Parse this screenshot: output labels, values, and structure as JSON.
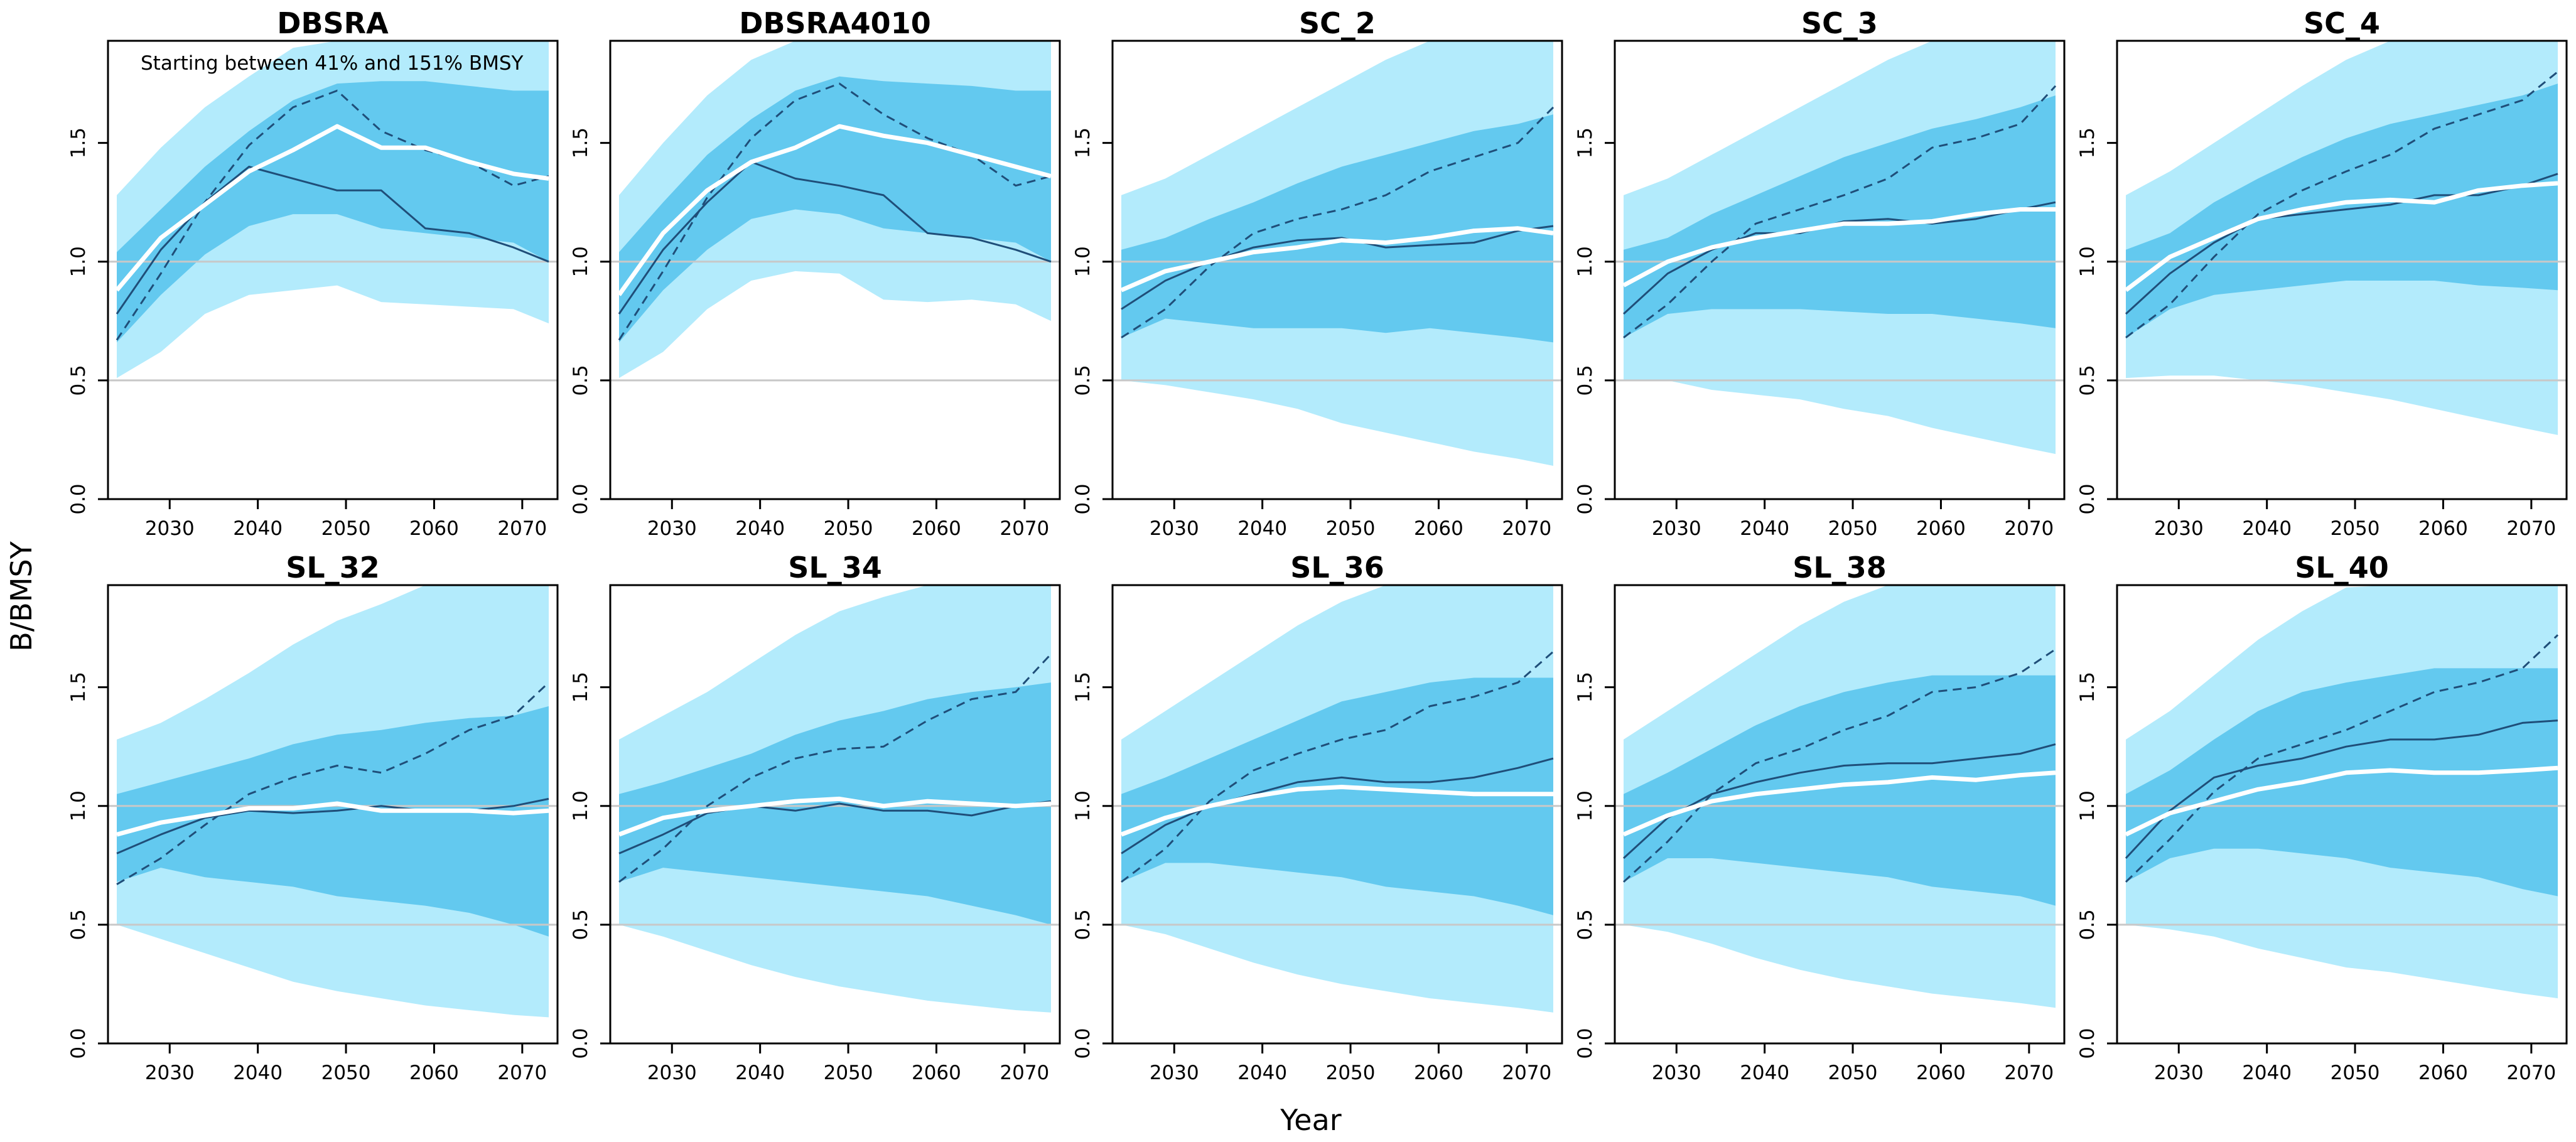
{
  "figure": {
    "ylabel": "B/BMSY",
    "xlabel": "Year"
  },
  "colors": {
    "outer_band": "#b3ebfc",
    "inner_band": "#63c9ef",
    "median_line": "#ffffff",
    "example_line": "#1f4e79",
    "dashed_line": "#1f4e79",
    "ref_line": "#c8c8c8",
    "frame": "#000000"
  },
  "chart_data": [
    {
      "type": "area",
      "title": "DBSRA",
      "annotation": "Starting between 41% and 151% BMSY",
      "xlim": [
        2023,
        2074
      ],
      "ylim": [
        0,
        1.93
      ],
      "xticks": [
        2030,
        2040,
        2050,
        2060,
        2070
      ],
      "yticks": [
        0.0,
        0.5,
        1.0,
        1.5
      ],
      "reference_lines": [
        0.5,
        1.0
      ],
      "years": [
        2024,
        2029,
        2034,
        2039,
        2044,
        2049,
        2054,
        2059,
        2064,
        2069,
        2073
      ],
      "outer_lo": [
        0.51,
        0.62,
        0.78,
        0.86,
        0.88,
        0.9,
        0.83,
        0.82,
        0.81,
        0.8,
        0.74
      ],
      "outer_hi": [
        1.28,
        1.48,
        1.65,
        1.78,
        1.9,
        1.93,
        1.93,
        1.93,
        1.93,
        1.93,
        1.93
      ],
      "inner_lo": [
        0.66,
        0.86,
        1.03,
        1.15,
        1.2,
        1.2,
        1.14,
        1.12,
        1.1,
        1.08,
        1.0
      ],
      "inner_hi": [
        1.04,
        1.22,
        1.4,
        1.55,
        1.68,
        1.75,
        1.76,
        1.76,
        1.74,
        1.72,
        1.72
      ],
      "median": [
        0.88,
        1.1,
        1.24,
        1.38,
        1.47,
        1.57,
        1.48,
        1.48,
        1.42,
        1.37,
        1.35
      ],
      "example": [
        0.78,
        1.05,
        1.25,
        1.4,
        1.35,
        1.3,
        1.3,
        1.14,
        1.12,
        1.06,
        1.0
      ],
      "dashed": [
        0.67,
        0.95,
        1.25,
        1.49,
        1.65,
        1.72,
        1.55,
        1.47,
        1.42,
        1.32,
        1.36
      ]
    },
    {
      "type": "area",
      "title": "DBSRA4010",
      "xlim": [
        2023,
        2074
      ],
      "ylim": [
        0,
        1.93
      ],
      "xticks": [
        2030,
        2040,
        2050,
        2060,
        2070
      ],
      "yticks": [
        0.0,
        0.5,
        1.0,
        1.5
      ],
      "reference_lines": [
        0.5,
        1.0
      ],
      "years": [
        2024,
        2029,
        2034,
        2039,
        2044,
        2049,
        2054,
        2059,
        2064,
        2069,
        2073
      ],
      "outer_lo": [
        0.51,
        0.62,
        0.8,
        0.92,
        0.96,
        0.95,
        0.84,
        0.83,
        0.84,
        0.82,
        0.75
      ],
      "outer_hi": [
        1.28,
        1.5,
        1.7,
        1.85,
        1.93,
        1.93,
        1.93,
        1.93,
        1.93,
        1.93,
        1.93
      ],
      "inner_lo": [
        0.66,
        0.88,
        1.05,
        1.18,
        1.22,
        1.2,
        1.14,
        1.12,
        1.1,
        1.08,
        1.0
      ],
      "inner_hi": [
        1.04,
        1.25,
        1.45,
        1.6,
        1.72,
        1.78,
        1.76,
        1.75,
        1.74,
        1.72,
        1.72
      ],
      "median": [
        0.86,
        1.12,
        1.3,
        1.42,
        1.48,
        1.57,
        1.53,
        1.5,
        1.45,
        1.4,
        1.36
      ],
      "example": [
        0.78,
        1.05,
        1.25,
        1.42,
        1.35,
        1.32,
        1.28,
        1.12,
        1.1,
        1.05,
        1.0
      ],
      "dashed": [
        0.67,
        0.96,
        1.27,
        1.52,
        1.68,
        1.75,
        1.62,
        1.52,
        1.45,
        1.32,
        1.36
      ]
    },
    {
      "type": "area",
      "title": "SC_2",
      "xlim": [
        2023,
        2074
      ],
      "ylim": [
        0,
        1.93
      ],
      "xticks": [
        2030,
        2040,
        2050,
        2060,
        2070
      ],
      "yticks": [
        0.0,
        0.5,
        1.0,
        1.5
      ],
      "reference_lines": [
        0.5,
        1.0
      ],
      "years": [
        2024,
        2029,
        2034,
        2039,
        2044,
        2049,
        2054,
        2059,
        2064,
        2069,
        2073
      ],
      "outer_lo": [
        0.5,
        0.48,
        0.45,
        0.42,
        0.38,
        0.32,
        0.28,
        0.24,
        0.2,
        0.17,
        0.14
      ],
      "outer_hi": [
        1.28,
        1.35,
        1.45,
        1.55,
        1.65,
        1.75,
        1.85,
        1.93,
        1.93,
        1.93,
        1.93
      ],
      "inner_lo": [
        0.68,
        0.76,
        0.74,
        0.72,
        0.72,
        0.72,
        0.7,
        0.72,
        0.7,
        0.68,
        0.66
      ],
      "inner_hi": [
        1.05,
        1.1,
        1.18,
        1.25,
        1.33,
        1.4,
        1.45,
        1.5,
        1.55,
        1.58,
        1.62
      ],
      "median": [
        0.88,
        0.96,
        1.0,
        1.04,
        1.06,
        1.09,
        1.08,
        1.1,
        1.13,
        1.14,
        1.12
      ],
      "example": [
        0.8,
        0.92,
        1.0,
        1.06,
        1.09,
        1.1,
        1.06,
        1.07,
        1.08,
        1.13,
        1.15
      ],
      "dashed": [
        0.68,
        0.8,
        0.98,
        1.12,
        1.18,
        1.22,
        1.28,
        1.38,
        1.44,
        1.5,
        1.65
      ]
    },
    {
      "type": "area",
      "title": "SC_3",
      "xlim": [
        2023,
        2074
      ],
      "ylim": [
        0,
        1.93
      ],
      "xticks": [
        2030,
        2040,
        2050,
        2060,
        2070
      ],
      "yticks": [
        0.0,
        0.5,
        1.0,
        1.5
      ],
      "reference_lines": [
        0.5,
        1.0
      ],
      "years": [
        2024,
        2029,
        2034,
        2039,
        2044,
        2049,
        2054,
        2059,
        2064,
        2069,
        2073
      ],
      "outer_lo": [
        0.5,
        0.5,
        0.46,
        0.44,
        0.42,
        0.38,
        0.35,
        0.3,
        0.26,
        0.22,
        0.19
      ],
      "outer_hi": [
        1.28,
        1.35,
        1.45,
        1.55,
        1.65,
        1.75,
        1.85,
        1.93,
        1.93,
        1.93,
        1.93
      ],
      "inner_lo": [
        0.68,
        0.78,
        0.8,
        0.8,
        0.8,
        0.79,
        0.78,
        0.78,
        0.76,
        0.74,
        0.72
      ],
      "inner_hi": [
        1.05,
        1.1,
        1.2,
        1.28,
        1.36,
        1.44,
        1.5,
        1.56,
        1.6,
        1.65,
        1.7
      ],
      "median": [
        0.9,
        1.0,
        1.06,
        1.1,
        1.13,
        1.16,
        1.16,
        1.17,
        1.2,
        1.22,
        1.22
      ],
      "example": [
        0.78,
        0.95,
        1.05,
        1.12,
        1.12,
        1.17,
        1.18,
        1.16,
        1.18,
        1.22,
        1.25
      ],
      "dashed": [
        0.68,
        0.82,
        1.0,
        1.16,
        1.22,
        1.28,
        1.35,
        1.48,
        1.52,
        1.58,
        1.74
      ]
    },
    {
      "type": "area",
      "title": "SC_4",
      "xlim": [
        2023,
        2074
      ],
      "ylim": [
        0,
        1.93
      ],
      "xticks": [
        2030,
        2040,
        2050,
        2060,
        2070
      ],
      "yticks": [
        0.0,
        0.5,
        1.0,
        1.5
      ],
      "reference_lines": [
        0.5,
        1.0
      ],
      "years": [
        2024,
        2029,
        2034,
        2039,
        2044,
        2049,
        2054,
        2059,
        2064,
        2069,
        2073
      ],
      "outer_lo": [
        0.51,
        0.52,
        0.52,
        0.5,
        0.48,
        0.45,
        0.42,
        0.38,
        0.34,
        0.3,
        0.27
      ],
      "outer_hi": [
        1.28,
        1.38,
        1.5,
        1.62,
        1.74,
        1.85,
        1.93,
        1.93,
        1.93,
        1.93,
        1.93
      ],
      "inner_lo": [
        0.68,
        0.8,
        0.86,
        0.88,
        0.9,
        0.92,
        0.92,
        0.92,
        0.9,
        0.89,
        0.88
      ],
      "inner_hi": [
        1.05,
        1.12,
        1.25,
        1.35,
        1.44,
        1.52,
        1.58,
        1.62,
        1.66,
        1.7,
        1.75
      ],
      "median": [
        0.88,
        1.02,
        1.1,
        1.18,
        1.22,
        1.25,
        1.26,
        1.25,
        1.3,
        1.32,
        1.33
      ],
      "example": [
        0.78,
        0.95,
        1.08,
        1.18,
        1.2,
        1.22,
        1.24,
        1.28,
        1.28,
        1.32,
        1.37
      ],
      "dashed": [
        0.68,
        0.82,
        1.02,
        1.2,
        1.3,
        1.38,
        1.45,
        1.56,
        1.62,
        1.68,
        1.8
      ]
    },
    {
      "type": "area",
      "title": "SL_32",
      "xlim": [
        2023,
        2074
      ],
      "ylim": [
        0,
        1.93
      ],
      "xticks": [
        2030,
        2040,
        2050,
        2060,
        2070
      ],
      "yticks": [
        0.0,
        0.5,
        1.0,
        1.5
      ],
      "reference_lines": [
        0.5,
        1.0
      ],
      "years": [
        2024,
        2029,
        2034,
        2039,
        2044,
        2049,
        2054,
        2059,
        2064,
        2069,
        2073
      ],
      "outer_lo": [
        0.5,
        0.44,
        0.38,
        0.32,
        0.26,
        0.22,
        0.19,
        0.16,
        0.14,
        0.12,
        0.11
      ],
      "outer_hi": [
        1.28,
        1.35,
        1.45,
        1.56,
        1.68,
        1.78,
        1.85,
        1.93,
        1.93,
        1.93,
        1.93
      ],
      "inner_lo": [
        0.68,
        0.74,
        0.7,
        0.68,
        0.66,
        0.62,
        0.6,
        0.58,
        0.55,
        0.5,
        0.45
      ],
      "inner_hi": [
        1.05,
        1.1,
        1.15,
        1.2,
        1.26,
        1.3,
        1.32,
        1.35,
        1.37,
        1.38,
        1.42
      ],
      "median": [
        0.88,
        0.93,
        0.96,
        0.99,
        0.99,
        1.01,
        0.98,
        0.98,
        0.98,
        0.97,
        0.98
      ],
      "example": [
        0.8,
        0.88,
        0.95,
        0.98,
        0.97,
        0.98,
        1.0,
        0.98,
        0.98,
        1.0,
        1.03
      ],
      "dashed": [
        0.67,
        0.78,
        0.92,
        1.05,
        1.12,
        1.17,
        1.14,
        1.22,
        1.32,
        1.38,
        1.52
      ]
    },
    {
      "type": "area",
      "title": "SL_34",
      "xlim": [
        2023,
        2074
      ],
      "ylim": [
        0,
        1.93
      ],
      "xticks": [
        2030,
        2040,
        2050,
        2060,
        2070
      ],
      "yticks": [
        0.0,
        0.5,
        1.0,
        1.5
      ],
      "reference_lines": [
        0.5,
        1.0
      ],
      "years": [
        2024,
        2029,
        2034,
        2039,
        2044,
        2049,
        2054,
        2059,
        2064,
        2069,
        2073
      ],
      "outer_lo": [
        0.5,
        0.45,
        0.39,
        0.33,
        0.28,
        0.24,
        0.21,
        0.18,
        0.16,
        0.14,
        0.13
      ],
      "outer_hi": [
        1.28,
        1.38,
        1.48,
        1.6,
        1.72,
        1.82,
        1.88,
        1.93,
        1.93,
        1.93,
        1.93
      ],
      "inner_lo": [
        0.68,
        0.74,
        0.72,
        0.7,
        0.68,
        0.66,
        0.64,
        0.62,
        0.58,
        0.54,
        0.5
      ],
      "inner_hi": [
        1.05,
        1.1,
        1.16,
        1.22,
        1.3,
        1.36,
        1.4,
        1.45,
        1.48,
        1.5,
        1.52
      ],
      "median": [
        0.88,
        0.95,
        0.98,
        1.0,
        1.02,
        1.03,
        1.0,
        1.02,
        1.01,
        1.0,
        1.01
      ],
      "example": [
        0.8,
        0.88,
        0.97,
        1.0,
        0.98,
        1.01,
        0.98,
        0.98,
        0.96,
        1.0,
        1.02
      ],
      "dashed": [
        0.68,
        0.82,
        1.0,
        1.12,
        1.2,
        1.24,
        1.25,
        1.36,
        1.45,
        1.48,
        1.64
      ]
    },
    {
      "type": "area",
      "title": "SL_36",
      "xlim": [
        2023,
        2074
      ],
      "ylim": [
        0,
        1.93
      ],
      "xticks": [
        2030,
        2040,
        2050,
        2060,
        2070
      ],
      "yticks": [
        0.0,
        0.5,
        1.0,
        1.5
      ],
      "reference_lines": [
        0.5,
        1.0
      ],
      "years": [
        2024,
        2029,
        2034,
        2039,
        2044,
        2049,
        2054,
        2059,
        2064,
        2069,
        2073
      ],
      "outer_lo": [
        0.5,
        0.46,
        0.4,
        0.34,
        0.29,
        0.25,
        0.22,
        0.19,
        0.17,
        0.15,
        0.13
      ],
      "outer_hi": [
        1.28,
        1.4,
        1.52,
        1.64,
        1.76,
        1.86,
        1.93,
        1.93,
        1.93,
        1.93,
        1.93
      ],
      "inner_lo": [
        0.68,
        0.76,
        0.76,
        0.74,
        0.72,
        0.7,
        0.66,
        0.64,
        0.62,
        0.58,
        0.54
      ],
      "inner_hi": [
        1.05,
        1.12,
        1.2,
        1.28,
        1.36,
        1.44,
        1.48,
        1.52,
        1.54,
        1.54,
        1.54
      ],
      "median": [
        0.88,
        0.95,
        1.0,
        1.04,
        1.07,
        1.08,
        1.07,
        1.06,
        1.05,
        1.05,
        1.05
      ],
      "example": [
        0.8,
        0.92,
        1.0,
        1.05,
        1.1,
        1.12,
        1.1,
        1.1,
        1.12,
        1.16,
        1.2
      ],
      "dashed": [
        0.68,
        0.82,
        1.02,
        1.15,
        1.22,
        1.28,
        1.32,
        1.42,
        1.46,
        1.52,
        1.65
      ]
    },
    {
      "type": "area",
      "title": "SL_38",
      "xlim": [
        2023,
        2074
      ],
      "ylim": [
        0,
        1.93
      ],
      "xticks": [
        2030,
        2040,
        2050,
        2060,
        2070
      ],
      "yticks": [
        0.0,
        0.5,
        1.0,
        1.5
      ],
      "reference_lines": [
        0.5,
        1.0
      ],
      "years": [
        2024,
        2029,
        2034,
        2039,
        2044,
        2049,
        2054,
        2059,
        2064,
        2069,
        2073
      ],
      "outer_lo": [
        0.5,
        0.47,
        0.42,
        0.36,
        0.31,
        0.27,
        0.24,
        0.21,
        0.19,
        0.17,
        0.15
      ],
      "outer_hi": [
        1.28,
        1.4,
        1.52,
        1.64,
        1.76,
        1.86,
        1.93,
        1.93,
        1.93,
        1.93,
        1.93
      ],
      "inner_lo": [
        0.68,
        0.78,
        0.78,
        0.76,
        0.74,
        0.72,
        0.7,
        0.66,
        0.64,
        0.62,
        0.58
      ],
      "inner_hi": [
        1.05,
        1.14,
        1.24,
        1.34,
        1.42,
        1.48,
        1.52,
        1.55,
        1.55,
        1.55,
        1.55
      ],
      "median": [
        0.88,
        0.96,
        1.02,
        1.05,
        1.07,
        1.09,
        1.1,
        1.12,
        1.11,
        1.13,
        1.14
      ],
      "example": [
        0.78,
        0.95,
        1.05,
        1.1,
        1.14,
        1.17,
        1.18,
        1.18,
        1.2,
        1.22,
        1.26
      ],
      "dashed": [
        0.68,
        0.85,
        1.05,
        1.18,
        1.24,
        1.32,
        1.38,
        1.48,
        1.5,
        1.56,
        1.66
      ]
    },
    {
      "type": "area",
      "title": "SL_40",
      "xlim": [
        2023,
        2074
      ],
      "ylim": [
        0,
        1.93
      ],
      "xticks": [
        2030,
        2040,
        2050,
        2060,
        2070
      ],
      "yticks": [
        0.0,
        0.5,
        1.0,
        1.5
      ],
      "reference_lines": [
        0.5,
        1.0
      ],
      "years": [
        2024,
        2029,
        2034,
        2039,
        2044,
        2049,
        2054,
        2059,
        2064,
        2069,
        2073
      ],
      "outer_lo": [
        0.5,
        0.48,
        0.45,
        0.4,
        0.36,
        0.32,
        0.3,
        0.27,
        0.24,
        0.21,
        0.19
      ],
      "outer_hi": [
        1.28,
        1.4,
        1.55,
        1.7,
        1.82,
        1.92,
        1.93,
        1.93,
        1.93,
        1.93,
        1.93
      ],
      "inner_lo": [
        0.68,
        0.78,
        0.82,
        0.82,
        0.8,
        0.78,
        0.74,
        0.72,
        0.7,
        0.65,
        0.62
      ],
      "inner_hi": [
        1.05,
        1.15,
        1.28,
        1.4,
        1.48,
        1.52,
        1.55,
        1.58,
        1.58,
        1.58,
        1.58
      ],
      "median": [
        0.88,
        0.97,
        1.02,
        1.07,
        1.1,
        1.14,
        1.15,
        1.14,
        1.14,
        1.15,
        1.16
      ],
      "example": [
        0.78,
        0.98,
        1.12,
        1.17,
        1.2,
        1.25,
        1.28,
        1.28,
        1.3,
        1.35,
        1.36
      ],
      "dashed": [
        0.68,
        0.86,
        1.06,
        1.2,
        1.26,
        1.32,
        1.4,
        1.48,
        1.52,
        1.58,
        1.72
      ]
    }
  ]
}
